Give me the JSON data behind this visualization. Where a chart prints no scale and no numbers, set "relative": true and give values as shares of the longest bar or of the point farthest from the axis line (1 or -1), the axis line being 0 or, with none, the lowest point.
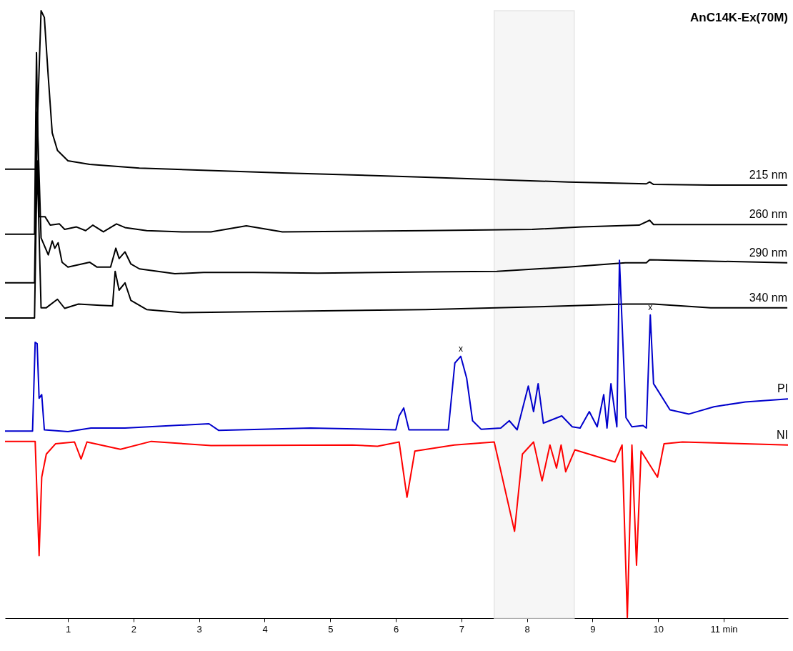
{
  "chart_data": {
    "type": "line",
    "title": "AnC14K-Ex(70M)",
    "relative": true,
    "xlim": [
      0.04,
      11.98
    ],
    "xticks": [
      1,
      2,
      3,
      4,
      5,
      6,
      7,
      8,
      9,
      10,
      {
        "value": 11,
        "label": "11 min"
      }
    ],
    "grid": false,
    "bands": [
      {
        "axis": "x",
        "from": 7.5,
        "to": 8.72,
        "color": "#e6e6e6"
      }
    ],
    "annotations": [
      {
        "text": "x",
        "x": 6.99,
        "y": 0.431
      },
      {
        "text": "x",
        "x": 9.88,
        "y": 0.499
      }
    ],
    "series": [
      {
        "name": "215 nm",
        "color": "#000000",
        "x": [
          0.04,
          0.51,
          0.59,
          0.64,
          0.7,
          0.76,
          0.84,
          1.0,
          1.33,
          2.09,
          4.27,
          6.45,
          8.63,
          9.82,
          9.87,
          9.93,
          10.8,
          11.97
        ],
        "values": [
          0.739,
          0.739,
          1.0,
          0.989,
          0.891,
          0.799,
          0.77,
          0.753,
          0.747,
          0.741,
          0.733,
          0.726,
          0.718,
          0.715,
          0.718,
          0.714,
          0.713,
          0.713
        ]
      },
      {
        "name": "260 nm",
        "color": "#000000",
        "x": [
          0.04,
          0.49,
          0.52,
          0.56,
          0.65,
          0.73,
          0.87,
          0.95,
          1.13,
          1.27,
          1.38,
          1.54,
          1.74,
          1.87,
          2.2,
          2.74,
          3.18,
          3.72,
          4.27,
          6.45,
          8.08,
          8.84,
          9.71,
          9.87,
          9.93,
          11.97
        ],
        "values": [
          0.632,
          0.632,
          0.931,
          0.661,
          0.661,
          0.647,
          0.649,
          0.64,
          0.644,
          0.638,
          0.647,
          0.636,
          0.649,
          0.643,
          0.638,
          0.636,
          0.636,
          0.646,
          0.636,
          0.638,
          0.64,
          0.644,
          0.647,
          0.655,
          0.648,
          0.648
        ]
      },
      {
        "name": "290 nm",
        "color": "#000000",
        "x": [
          0.04,
          0.49,
          0.53,
          0.59,
          0.7,
          0.76,
          0.8,
          0.85,
          0.91,
          1.0,
          1.33,
          1.44,
          1.65,
          1.73,
          1.78,
          1.87,
          1.96,
          2.09,
          2.63,
          3.07,
          3.83,
          4.81,
          6.45,
          7.54,
          8.63,
          9.5,
          9.82,
          9.87,
          11.97
        ],
        "values": [
          0.552,
          0.552,
          0.833,
          0.626,
          0.598,
          0.621,
          0.609,
          0.618,
          0.586,
          0.578,
          0.586,
          0.578,
          0.578,
          0.609,
          0.592,
          0.603,
          0.583,
          0.575,
          0.567,
          0.569,
          0.569,
          0.568,
          0.57,
          0.571,
          0.578,
          0.585,
          0.585,
          0.59,
          0.585
        ]
      },
      {
        "name": "340 nm",
        "color": "#000000",
        "x": [
          0.04,
          0.49,
          0.53,
          0.59,
          0.67,
          0.84,
          0.95,
          1.16,
          1.49,
          1.68,
          1.72,
          1.78,
          1.87,
          1.96,
          2.2,
          2.74,
          4.27,
          6.45,
          8.63,
          9.5,
          9.93,
          10.8,
          11.97
        ],
        "values": [
          0.494,
          0.494,
          0.753,
          0.511,
          0.511,
          0.525,
          0.51,
          0.517,
          0.515,
          0.514,
          0.571,
          0.54,
          0.552,
          0.523,
          0.508,
          0.503,
          0.505,
          0.508,
          0.514,
          0.517,
          0.517,
          0.511,
          0.511
        ]
      },
      {
        "name": "PI",
        "color": "#0000cc",
        "x": [
          0.04,
          0.46,
          0.5,
          0.53,
          0.56,
          0.6,
          0.64,
          1.0,
          1.35,
          1.87,
          3.15,
          3.3,
          4.7,
          6.0,
          6.05,
          6.12,
          6.2,
          6.8,
          6.9,
          6.99,
          7.08,
          7.17,
          7.3,
          7.6,
          7.73,
          7.85,
          8.02,
          8.1,
          8.17,
          8.25,
          8.53,
          8.69,
          8.81,
          8.95,
          9.07,
          9.17,
          9.22,
          9.28,
          9.37,
          9.41,
          9.51,
          9.6,
          9.77,
          9.82,
          9.88,
          9.93,
          10.18,
          10.47,
          10.85,
          11.33,
          11.98
        ],
        "values": [
          0.308,
          0.308,
          0.454,
          0.452,
          0.362,
          0.368,
          0.31,
          0.307,
          0.313,
          0.313,
          0.32,
          0.309,
          0.313,
          0.31,
          0.333,
          0.346,
          0.31,
          0.31,
          0.42,
          0.431,
          0.395,
          0.325,
          0.311,
          0.313,
          0.325,
          0.31,
          0.382,
          0.34,
          0.386,
          0.321,
          0.333,
          0.315,
          0.313,
          0.34,
          0.315,
          0.368,
          0.313,
          0.386,
          0.315,
          0.589,
          0.33,
          0.315,
          0.317,
          0.313,
          0.499,
          0.386,
          0.343,
          0.336,
          0.348,
          0.356,
          0.361
        ]
      },
      {
        "name": "NI",
        "color": "#ff0000",
        "x": [
          0.04,
          0.5,
          0.56,
          0.6,
          0.67,
          0.81,
          1.1,
          1.2,
          1.29,
          1.8,
          2.27,
          3.18,
          5.34,
          5.72,
          6.05,
          6.17,
          6.29,
          6.89,
          7.5,
          7.81,
          7.93,
          8.1,
          8.23,
          8.35,
          8.45,
          8.52,
          8.59,
          8.73,
          9.34,
          9.45,
          9.53,
          9.6,
          9.67,
          9.74,
          9.99,
          10.09,
          10.37,
          11.98
        ],
        "values": [
          0.291,
          0.291,
          0.103,
          0.232,
          0.27,
          0.287,
          0.29,
          0.262,
          0.29,
          0.278,
          0.291,
          0.284,
          0.285,
          0.283,
          0.29,
          0.199,
          0.275,
          0.285,
          0.29,
          0.143,
          0.27,
          0.29,
          0.226,
          0.285,
          0.247,
          0.285,
          0.241,
          0.277,
          0.257,
          0.285,
          0.001,
          0.285,
          0.087,
          0.275,
          0.232,
          0.287,
          0.29,
          0.285
        ]
      }
    ]
  }
}
